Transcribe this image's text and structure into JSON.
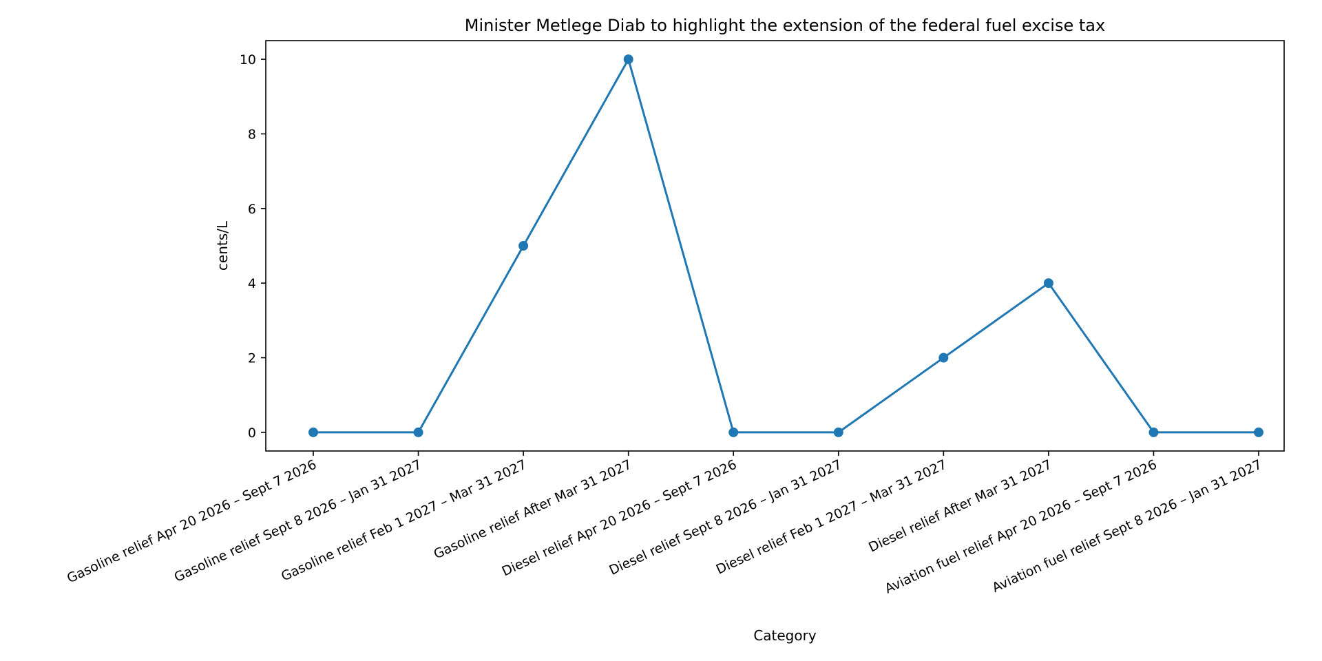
{
  "chart_data": {
    "type": "line",
    "title": "Minister Metlege Diab to highlight the extension of the federal fuel excise tax",
    "xlabel": "Category",
    "ylabel": "cents/L",
    "categories": [
      "Gasoline relief Apr 20 2026 – Sept 7 2026",
      "Gasoline relief Sept 8 2026 – Jan 31 2027",
      "Gasoline relief Feb 1 2027 – Mar 31 2027",
      "Gasoline relief After Mar 31 2027",
      "Diesel relief Apr 20 2026 – Sept 7 2026",
      "Diesel relief Sept 8 2026 – Jan 31 2027",
      "Diesel relief Feb 1 2027 – Mar 31 2027",
      "Diesel relief After Mar 31 2027",
      "Aviation fuel relief Apr 20 2026 – Sept 7 2026",
      "Aviation fuel relief Sept 8 2026 – Jan 31 2027"
    ],
    "values": [
      0,
      0,
      5,
      10,
      0,
      0,
      2,
      4,
      0,
      0
    ],
    "ylim": [
      -0.5,
      10.5
    ],
    "yticks": [
      0,
      2,
      4,
      6,
      8,
      10
    ],
    "grid": false,
    "legend": "none",
    "line_color": "#1f77b4"
  }
}
